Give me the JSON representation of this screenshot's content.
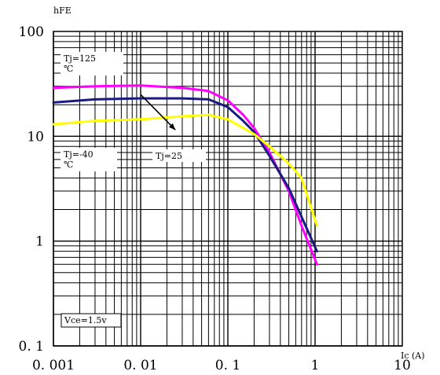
{
  "chart_data": {
    "type": "line",
    "xscale": "log",
    "yscale": "log",
    "xlim": [
      0.001,
      10
    ],
    "ylim": [
      0.1,
      100
    ],
    "grid": true,
    "xlabel": "Ic (A)",
    "ylabel": "hFE",
    "x_tick_labels": [
      "0. 001",
      "0. 01",
      "0. 1",
      "1",
      "10"
    ],
    "y_tick_labels": [
      "0. 1",
      "1",
      "10",
      "100"
    ],
    "x_ticks": [
      0.001,
      0.01,
      0.1,
      1,
      10
    ],
    "y_ticks": [
      0.1,
      1,
      10,
      100
    ],
    "series": [
      {
        "name": "Tj=125",
        "color": "#ff00ff",
        "x": [
          0.001,
          0.003,
          0.01,
          0.03,
          0.06,
          0.1,
          0.15,
          0.2,
          0.3,
          0.5,
          0.7,
          1.05
        ],
        "y": [
          29,
          30,
          30.5,
          29,
          27,
          22,
          16,
          12,
          7,
          3,
          1.4,
          0.6
        ]
      },
      {
        "name": "Tj=25",
        "color": "#1a1a80",
        "x": [
          0.001,
          0.003,
          0.01,
          0.03,
          0.06,
          0.1,
          0.15,
          0.2,
          0.3,
          0.5,
          0.7,
          1.05
        ],
        "y": [
          21,
          22.5,
          23,
          23,
          22.5,
          19,
          14,
          11,
          6.5,
          3.2,
          1.7,
          0.8
        ]
      },
      {
        "name": "Tj=-40",
        "color": "#ffff00",
        "x": [
          0.001,
          0.003,
          0.01,
          0.03,
          0.06,
          0.1,
          0.15,
          0.2,
          0.3,
          0.5,
          0.7,
          1.05
        ],
        "y": [
          13,
          14,
          14.5,
          15.5,
          16,
          14.5,
          12,
          10.5,
          8,
          5.5,
          4,
          1.4
        ]
      }
    ],
    "annotations": [
      {
        "text": "Tj=125",
        "sub": "℃"
      },
      {
        "text": "Tj=-40",
        "sub": "℃"
      },
      {
        "text": "Tj=25",
        "sub": ""
      },
      {
        "text": "Vce=1.5v",
        "sub": ""
      }
    ],
    "arrow": {
      "from": [
        0.01,
        25
      ],
      "to": [
        0.025,
        11.5
      ]
    }
  }
}
